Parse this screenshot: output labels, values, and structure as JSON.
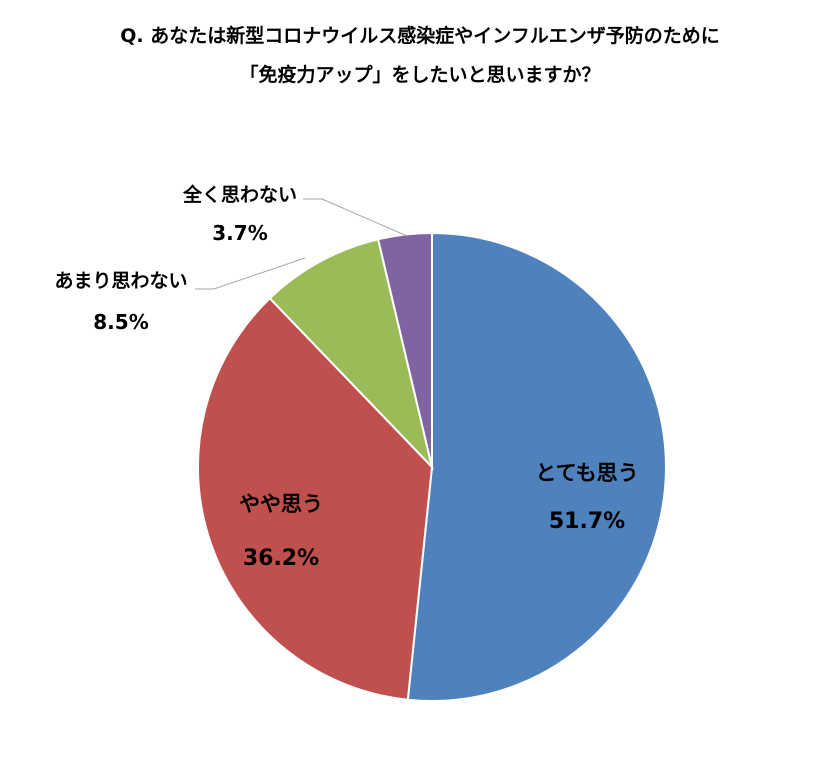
{
  "chart_data": {
    "type": "pie",
    "title_line1": "Q. あなたは新型コロナウイルス感染症やインフルエンザ予防のために",
    "title_line2": "「免疫力アップ」をしたいと思いますか？",
    "slices": [
      {
        "label": "とても思う",
        "value": 51.7,
        "value_label": "51.7%",
        "color": "#4f81bd"
      },
      {
        "label": "やや思う",
        "value": 36.2,
        "value_label": "36.2%",
        "color": "#c0504d"
      },
      {
        "label": "あまり思わない",
        "value": 8.5,
        "value_label": "8.5%",
        "color": "#9bbb59"
      },
      {
        "label": "全く思わない",
        "value": 3.7,
        "value_label": "3.7%",
        "color": "#8064a2"
      }
    ]
  }
}
